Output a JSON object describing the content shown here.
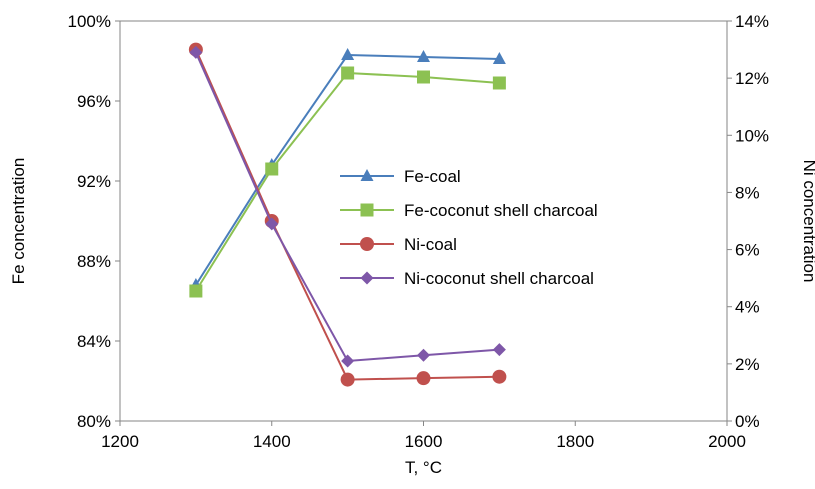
{
  "chart_data": {
    "type": "line",
    "title": "",
    "xlabel": "T, °C",
    "ylabel": "Fe concentration",
    "y2label": "Ni concentration",
    "xlim": [
      1200,
      2000
    ],
    "xticks": [
      1200,
      1400,
      1600,
      1800,
      2000
    ],
    "ylim": [
      80,
      100
    ],
    "yticks": [
      80,
      84,
      88,
      92,
      96,
      100
    ],
    "ytick_labels": [
      "80%",
      "84%",
      "88%",
      "92%",
      "96%",
      "100%"
    ],
    "y2lim": [
      0,
      14
    ],
    "y2ticks": [
      0,
      2,
      4,
      6,
      8,
      10,
      12,
      14
    ],
    "y2tick_labels": [
      "0%",
      "2%",
      "4%",
      "6%",
      "8%",
      "10%",
      "12%",
      "14%"
    ],
    "grid": false,
    "legend_position": "center",
    "series": [
      {
        "name": "Fe-coal",
        "axis": "left",
        "marker": "triangle",
        "color": "#4a7ebb",
        "x": [
          1300,
          1400,
          1500,
          1600,
          1700
        ],
        "values": [
          86.8,
          92.8,
          98.3,
          98.2,
          98.1
        ]
      },
      {
        "name": "Fe-coconut shell charcoal",
        "axis": "left",
        "marker": "square",
        "color": "#8cc152",
        "x": [
          1300,
          1400,
          1500,
          1600,
          1700
        ],
        "values": [
          86.5,
          92.6,
          97.4,
          97.2,
          96.9
        ]
      },
      {
        "name": "Ni-coal",
        "axis": "right",
        "marker": "circle",
        "color": "#c0504d",
        "x": [
          1300,
          1400,
          1500,
          1600,
          1700
        ],
        "values": [
          13.0,
          7.0,
          1.45,
          1.5,
          1.55
        ]
      },
      {
        "name": "Ni-coconut shell charcoal",
        "axis": "right",
        "marker": "diamond",
        "color": "#7e57a8",
        "x": [
          1300,
          1400,
          1500,
          1600,
          1700
        ],
        "values": [
          12.9,
          6.9,
          2.1,
          2.3,
          2.5
        ]
      }
    ]
  }
}
